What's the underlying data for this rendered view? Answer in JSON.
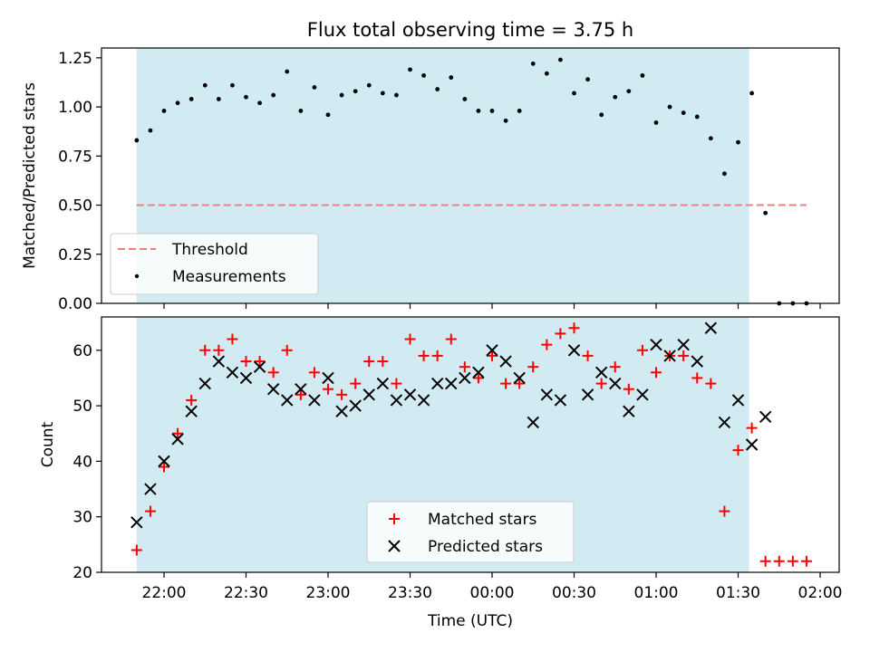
{
  "chart_data": [
    {
      "type": "scatter",
      "title": "Flux total observing time = 3.75 h",
      "ylabel": "Matched/Predicted stars",
      "ylim": [
        0.0,
        1.3
      ],
      "yticks": [
        "0.00",
        "0.25",
        "0.50",
        "0.75",
        "1.00",
        "1.25"
      ],
      "threshold": {
        "name": "Threshold",
        "value": 0.5,
        "x_start": "21:50",
        "x_end": "01:55",
        "color": "#f08080"
      },
      "shaded_span": {
        "start": "21:50",
        "end": "01:34",
        "color": "#add8e6"
      },
      "legend_position": "lower-left",
      "series": [
        {
          "name": "Measurements",
          "color": "#000000",
          "x": [
            "21:50",
            "21:55",
            "22:00",
            "22:05",
            "22:10",
            "22:15",
            "22:20",
            "22:25",
            "22:30",
            "22:35",
            "22:40",
            "22:45",
            "22:50",
            "22:55",
            "23:00",
            "23:05",
            "23:10",
            "23:15",
            "23:20",
            "23:25",
            "23:30",
            "23:35",
            "23:40",
            "23:45",
            "23:50",
            "23:55",
            "00:00",
            "00:05",
            "00:10",
            "00:15",
            "00:20",
            "00:25",
            "00:30",
            "00:35",
            "00:40",
            "00:45",
            "00:50",
            "00:55",
            "01:00",
            "01:05",
            "01:10",
            "01:15",
            "01:20",
            "01:25",
            "01:30",
            "01:35",
            "01:40",
            "01:45",
            "01:50",
            "01:55"
          ],
          "y": [
            0.83,
            0.88,
            0.98,
            1.02,
            1.04,
            1.11,
            1.04,
            1.11,
            1.05,
            1.02,
            1.06,
            1.18,
            0.98,
            1.1,
            0.96,
            1.06,
            1.08,
            1.11,
            1.07,
            1.06,
            1.19,
            1.16,
            1.09,
            1.15,
            1.04,
            0.98,
            0.98,
            0.93,
            0.98,
            1.22,
            1.17,
            1.24,
            1.07,
            1.14,
            0.96,
            1.05,
            1.08,
            1.16,
            0.92,
            1.0,
            0.97,
            0.95,
            0.84,
            0.66,
            0.82,
            1.07,
            0.46,
            0.0,
            0.0,
            0.0
          ]
        }
      ]
    },
    {
      "type": "scatter",
      "xlabel": "Time (UTC)",
      "ylabel": "Count",
      "ylim": [
        20,
        66
      ],
      "yticks": [
        "20",
        "30",
        "40",
        "50",
        "60"
      ],
      "xticks": [
        "22:00",
        "22:30",
        "23:00",
        "23:30",
        "00:00",
        "00:30",
        "01:00",
        "01:30",
        "02:00"
      ],
      "shaded_span": {
        "start": "21:50",
        "end": "01:34",
        "color": "#add8e6"
      },
      "legend_position": "lower-center",
      "series": [
        {
          "name": "Matched stars",
          "marker": "plus",
          "color": "#ff0000",
          "x": [
            "21:50",
            "21:55",
            "22:00",
            "22:05",
            "22:10",
            "22:15",
            "22:20",
            "22:25",
            "22:30",
            "22:35",
            "22:40",
            "22:45",
            "22:50",
            "22:55",
            "23:00",
            "23:05",
            "23:10",
            "23:15",
            "23:20",
            "23:25",
            "23:30",
            "23:35",
            "23:40",
            "23:45",
            "23:50",
            "23:55",
            "00:00",
            "00:05",
            "00:10",
            "00:15",
            "00:20",
            "00:25",
            "00:30",
            "00:35",
            "00:40",
            "00:45",
            "00:50",
            "00:55",
            "01:00",
            "01:05",
            "01:10",
            "01:15",
            "01:20",
            "01:25",
            "01:30",
            "01:35",
            "01:40",
            "01:45",
            "01:50",
            "01:55"
          ],
          "y": [
            24,
            31,
            39,
            45,
            51,
            60,
            60,
            62,
            58,
            58,
            56,
            60,
            52,
            56,
            53,
            52,
            54,
            58,
            58,
            54,
            62,
            59,
            59,
            62,
            57,
            55,
            59,
            54,
            54,
            57,
            61,
            63,
            64,
            59,
            54,
            57,
            53,
            60,
            56,
            59,
            59,
            55,
            54,
            31,
            42,
            46,
            22,
            22,
            22,
            22
          ]
        },
        {
          "name": "Predicted stars",
          "marker": "x",
          "color": "#000000",
          "x": [
            "21:50",
            "21:55",
            "22:00",
            "22:05",
            "22:10",
            "22:15",
            "22:20",
            "22:25",
            "22:30",
            "22:35",
            "22:40",
            "22:45",
            "22:50",
            "22:55",
            "23:00",
            "23:05",
            "23:10",
            "23:15",
            "23:20",
            "23:25",
            "23:30",
            "23:35",
            "23:40",
            "23:45",
            "23:50",
            "23:55",
            "00:00",
            "00:05",
            "00:10",
            "00:15",
            "00:20",
            "00:25",
            "00:30",
            "00:35",
            "00:40",
            "00:45",
            "00:50",
            "00:55",
            "01:00",
            "01:05",
            "01:10",
            "01:15",
            "01:20",
            "01:25",
            "01:30",
            "01:35",
            "01:40"
          ],
          "y": [
            29,
            35,
            40,
            44,
            49,
            54,
            58,
            56,
            55,
            57,
            53,
            51,
            53,
            51,
            55,
            49,
            50,
            52,
            54,
            51,
            52,
            51,
            54,
            54,
            55,
            56,
            60,
            58,
            55,
            47,
            52,
            51,
            60,
            52,
            56,
            54,
            49,
            52,
            61,
            59,
            61,
            58,
            64,
            47,
            51,
            43,
            48
          ]
        }
      ]
    }
  ]
}
